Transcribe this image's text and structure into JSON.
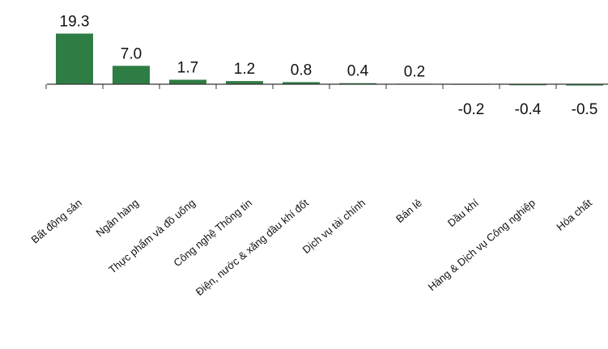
{
  "chart_data": {
    "type": "bar",
    "categories": [
      "Bất động sản",
      "Ngân hàng",
      "Thực phẩm và đồ uống",
      "Công nghệ Thông tin",
      "Điện, nước & xăng dầu khí đốt",
      "Dịch vụ tài chính",
      "Bán lẻ",
      "Dầu khí",
      "Hàng & Dịch vụ Công nghiệp",
      "Hóa chất"
    ],
    "values": [
      19.3,
      7.0,
      1.7,
      1.2,
      0.8,
      0.4,
      0.2,
      -0.2,
      -0.4,
      -0.5
    ],
    "value_labels": [
      "19.3",
      "7.0",
      "1.7",
      "1.2",
      "0.8",
      "0.4",
      "0.2",
      "-0.2",
      "-0.4",
      "-0.5"
    ],
    "title": "",
    "xlabel": "",
    "ylabel": "",
    "grid": false,
    "bar_color": "#2e7d44",
    "axis_color": "#333333"
  }
}
